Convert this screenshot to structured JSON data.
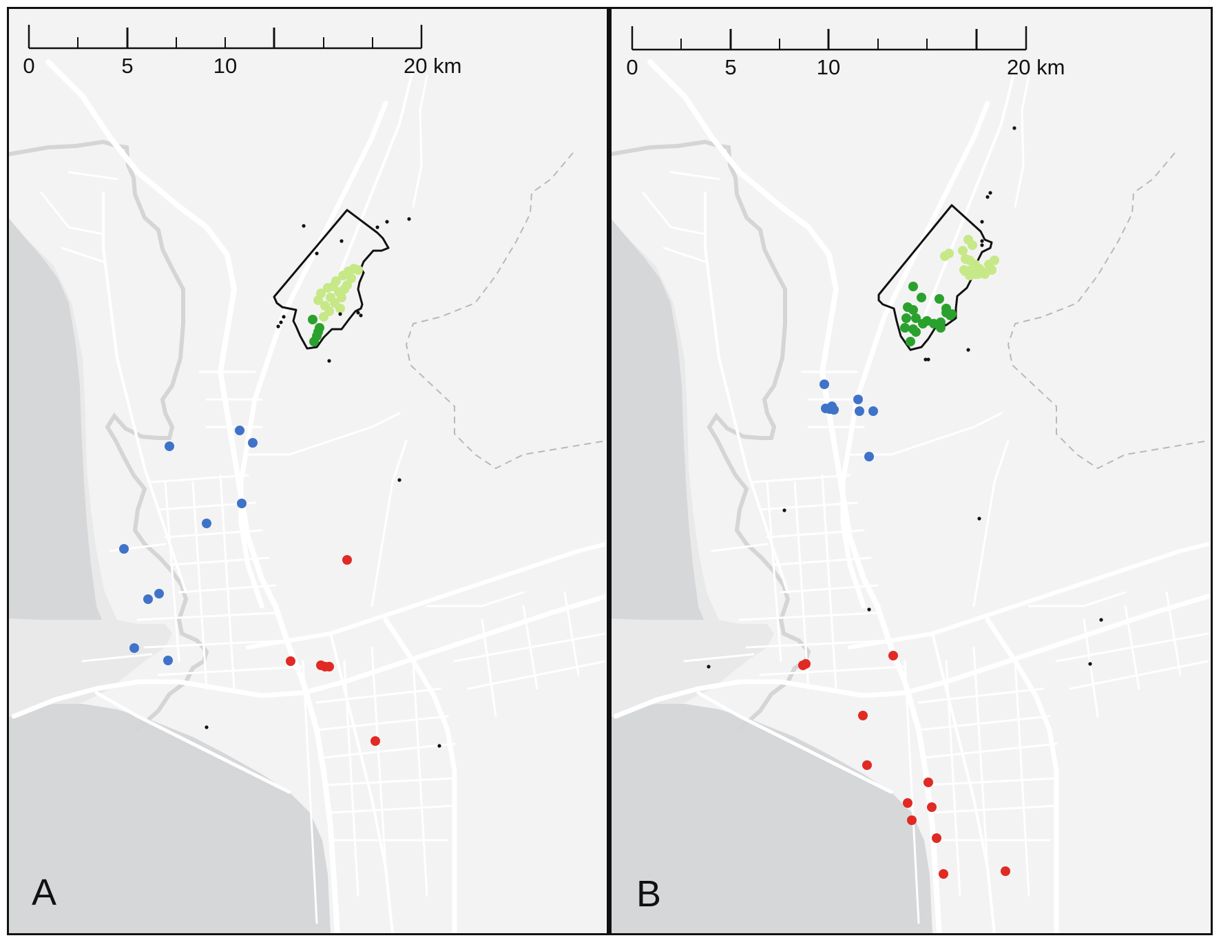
{
  "panels": [
    {
      "id": "A",
      "label": "A",
      "scale_ticks": [
        "0",
        "5",
        "10",
        "20 km"
      ],
      "colors": {
        "blue": "#3f73c8",
        "red": "#e02a24",
        "dark_green": "#2aa12d",
        "light_green": "#c7e887",
        "black": "#111111"
      },
      "points": {
        "blue": [
          [
            246,
            648
          ],
          [
            348,
            625
          ],
          [
            367,
            643
          ],
          [
            351,
            731
          ],
          [
            300,
            760
          ],
          [
            180,
            797
          ],
          [
            215,
            870
          ],
          [
            231,
            862
          ],
          [
            195,
            941
          ],
          [
            244,
            959
          ]
        ],
        "red": [
          [
            504,
            813
          ],
          [
            422,
            960
          ],
          [
            466,
            966
          ],
          [
            472,
            968
          ],
          [
            478,
            968
          ],
          [
            545,
            1076
          ]
        ],
        "dark_green": [
          [
            454,
            464
          ],
          [
            464,
            476
          ],
          [
            460,
            488
          ],
          [
            456,
            496
          ],
          [
            462,
            482
          ]
        ],
        "light_green": [
          [
            466,
            426
          ],
          [
            476,
            418
          ],
          [
            488,
            408
          ],
          [
            498,
            400
          ],
          [
            506,
            394
          ],
          [
            514,
            390
          ],
          [
            480,
            432
          ],
          [
            492,
            424
          ],
          [
            504,
            414
          ],
          [
            472,
            444
          ],
          [
            486,
            440
          ],
          [
            496,
            432
          ],
          [
            510,
            404
          ],
          [
            478,
            452
          ],
          [
            494,
            448
          ],
          [
            520,
            392
          ],
          [
            462,
            436
          ],
          [
            500,
            420
          ],
          [
            484,
            416
          ],
          [
            470,
            460
          ]
        ],
        "black": [
          [
            441,
            328
          ],
          [
            594,
            318
          ],
          [
            496,
            350
          ],
          [
            460,
            368
          ],
          [
            548,
            330
          ],
          [
            562,
            322
          ],
          [
            404,
            474
          ],
          [
            408,
            468
          ],
          [
            412,
            460
          ],
          [
            494,
            456
          ],
          [
            520,
            454
          ],
          [
            524,
            458
          ],
          [
            478,
            524
          ],
          [
            580,
            697
          ],
          [
            300,
            1056
          ],
          [
            638,
            1083
          ]
        ]
      },
      "boundary": [
        [
          398,
          431
        ],
        [
          504,
          305
        ],
        [
          548,
          338
        ],
        [
          556,
          346
        ],
        [
          564,
          360
        ],
        [
          554,
          364
        ],
        [
          542,
          364
        ],
        [
          528,
          380
        ],
        [
          524,
          390
        ],
        [
          528,
          396
        ],
        [
          522,
          410
        ],
        [
          520,
          420
        ],
        [
          526,
          442
        ],
        [
          524,
          448
        ],
        [
          516,
          452
        ],
        [
          508,
          462
        ],
        [
          496,
          478
        ],
        [
          482,
          478
        ],
        [
          470,
          490
        ],
        [
          460,
          504
        ],
        [
          446,
          506
        ],
        [
          436,
          488
        ],
        [
          430,
          474
        ],
        [
          426,
          466
        ],
        [
          430,
          450
        ],
        [
          410,
          446
        ],
        [
          402,
          440
        ]
      ]
    },
    {
      "id": "B",
      "label": "B",
      "scale_ticks": [
        "0",
        "5",
        "10",
        "20 km"
      ],
      "colors": {
        "blue": "#3f73c8",
        "red": "#e02a24",
        "dark_green": "#2aa12d",
        "light_green": "#c7e887",
        "black": "#111111"
      },
      "points": {
        "blue": [
          [
            1197,
            558
          ],
          [
            1246,
            580
          ],
          [
            1199,
            593
          ],
          [
            1205,
            594
          ],
          [
            1211,
            595
          ],
          [
            1208,
            590
          ],
          [
            1248,
            597
          ],
          [
            1268,
            597
          ],
          [
            1262,
            663
          ]
        ],
        "red": [
          [
            1297,
            952
          ],
          [
            1166,
            966
          ],
          [
            1170,
            964
          ],
          [
            1253,
            1039
          ],
          [
            1259,
            1111
          ],
          [
            1348,
            1136
          ],
          [
            1318,
            1166
          ],
          [
            1353,
            1172
          ],
          [
            1324,
            1191
          ],
          [
            1360,
            1217
          ],
          [
            1370,
            1269
          ],
          [
            1460,
            1265
          ]
        ],
        "dark_green": [
          [
            1326,
            416
          ],
          [
            1338,
            432
          ],
          [
            1318,
            446
          ],
          [
            1326,
            450
          ],
          [
            1316,
            462
          ],
          [
            1330,
            462
          ],
          [
            1346,
            466
          ],
          [
            1356,
            470
          ],
          [
            1366,
            468
          ],
          [
            1374,
            454
          ],
          [
            1364,
            434
          ],
          [
            1374,
            448
          ],
          [
            1380,
            458
          ],
          [
            1314,
            476
          ],
          [
            1326,
            478
          ],
          [
            1340,
            470
          ],
          [
            1322,
            496
          ],
          [
            1330,
            482
          ],
          [
            1382,
            456
          ],
          [
            1366,
            476
          ]
        ],
        "light_green": [
          [
            1406,
            348
          ],
          [
            1402,
            376
          ],
          [
            1408,
            378
          ],
          [
            1416,
            384
          ],
          [
            1422,
            390
          ],
          [
            1430,
            396
          ],
          [
            1440,
            392
          ],
          [
            1436,
            384
          ],
          [
            1444,
            378
          ],
          [
            1372,
            372
          ],
          [
            1378,
            368
          ],
          [
            1398,
            364
          ],
          [
            1412,
            356
          ],
          [
            1410,
            392
          ],
          [
            1420,
            398
          ],
          [
            1430,
            398
          ],
          [
            1416,
            398
          ],
          [
            1402,
            394
          ],
          [
            1408,
            400
          ],
          [
            1400,
            392
          ]
        ],
        "black": [
          [
            1473,
            186
          ],
          [
            1438,
            280
          ],
          [
            1434,
            286
          ],
          [
            1426,
            322
          ],
          [
            1426,
            350
          ],
          [
            1426,
            356
          ],
          [
            1406,
            508
          ],
          [
            1348,
            522
          ],
          [
            1344,
            522
          ],
          [
            1139,
            741
          ],
          [
            1422,
            753
          ],
          [
            1262,
            885
          ],
          [
            1599,
            900
          ],
          [
            1583,
            964
          ],
          [
            1029,
            968
          ]
        ]
      },
      "boundary": [
        [
          1276,
          428
        ],
        [
          1382,
          298
        ],
        [
          1424,
          336
        ],
        [
          1430,
          348
        ],
        [
          1440,
          352
        ],
        [
          1438,
          360
        ],
        [
          1426,
          366
        ],
        [
          1418,
          382
        ],
        [
          1412,
          402
        ],
        [
          1404,
          418
        ],
        [
          1390,
          430
        ],
        [
          1388,
          448
        ],
        [
          1388,
          462
        ],
        [
          1374,
          472
        ],
        [
          1358,
          476
        ],
        [
          1348,
          492
        ],
        [
          1338,
          504
        ],
        [
          1322,
          508
        ],
        [
          1308,
          488
        ],
        [
          1302,
          466
        ],
        [
          1298,
          448
        ],
        [
          1282,
          442
        ],
        [
          1276,
          436
        ]
      ]
    }
  ]
}
